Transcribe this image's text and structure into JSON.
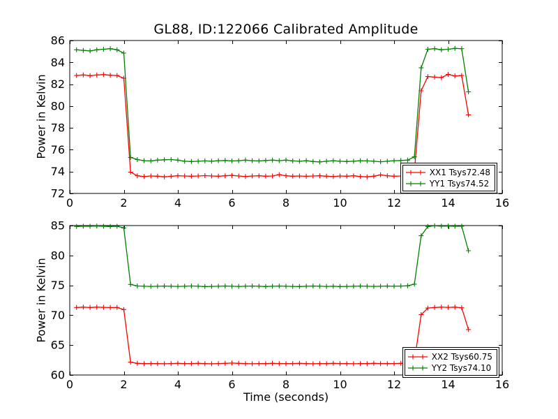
{
  "figure": {
    "background_color": "#ffffff",
    "axis_color": "#000000"
  },
  "chart_data": [
    {
      "type": "line",
      "title": "GL88, ID:122066 Calibrated Amplitude",
      "xlabel": "",
      "ylabel": "Power in Kelvin",
      "xlim": [
        0,
        16
      ],
      "ylim": [
        72,
        86
      ],
      "xticks": [
        0,
        2,
        4,
        6,
        8,
        10,
        12,
        14,
        16
      ],
      "yticks": [
        72,
        74,
        76,
        78,
        80,
        82,
        84,
        86
      ],
      "grid": false,
      "tick_direction": "in",
      "marker": "+",
      "legend_position": "lower-right",
      "x": [
        0.25,
        0.5,
        0.75,
        1.0,
        1.25,
        1.5,
        1.75,
        2.0,
        2.25,
        2.5,
        2.75,
        3.0,
        3.25,
        3.5,
        3.75,
        4.0,
        4.25,
        4.5,
        4.75,
        5.0,
        5.25,
        5.5,
        5.75,
        6.0,
        6.25,
        6.5,
        6.75,
        7.0,
        7.25,
        7.5,
        7.75,
        8.0,
        8.25,
        8.5,
        8.75,
        9.0,
        9.25,
        9.5,
        9.75,
        10.0,
        10.25,
        10.5,
        10.75,
        11.0,
        11.25,
        11.5,
        11.75,
        12.0,
        12.25,
        12.5,
        12.75,
        13.0,
        13.25,
        13.5,
        13.75,
        14.0,
        14.25,
        14.5,
        14.75
      ],
      "series": [
        {
          "name": "XX1 Tsys72.48",
          "color": "#ff0000",
          "values": [
            82.8,
            82.85,
            82.78,
            82.84,
            82.88,
            82.82,
            82.8,
            82.55,
            73.95,
            73.62,
            73.55,
            73.6,
            73.58,
            73.52,
            73.57,
            73.62,
            73.6,
            73.58,
            73.6,
            73.63,
            73.6,
            73.58,
            73.62,
            73.65,
            73.6,
            73.55,
            73.6,
            73.62,
            73.58,
            73.6,
            73.72,
            73.62,
            73.58,
            73.6,
            73.57,
            73.6,
            73.62,
            73.58,
            73.55,
            73.6,
            73.58,
            73.62,
            73.55,
            73.52,
            73.58,
            73.7,
            73.62,
            73.58,
            73.6,
            73.66,
            74.0,
            81.4,
            82.7,
            82.65,
            82.6,
            82.9,
            82.75,
            82.8,
            79.2
          ]
        },
        {
          "name": "YY1 Tsys74.52",
          "color": "#008000",
          "values": [
            85.15,
            85.1,
            85.05,
            85.15,
            85.2,
            85.25,
            85.15,
            84.85,
            75.3,
            75.1,
            75.0,
            74.98,
            75.05,
            75.08,
            75.1,
            75.05,
            74.95,
            74.92,
            74.95,
            74.98,
            74.95,
            75.0,
            75.02,
            74.98,
            75.0,
            75.05,
            75.0,
            74.98,
            75.02,
            75.05,
            75.0,
            75.05,
            74.98,
            74.95,
            75.0,
            74.92,
            74.88,
            74.95,
            75.0,
            74.95,
            74.92,
            74.95,
            75.0,
            74.98,
            74.95,
            74.9,
            74.95,
            75.0,
            75.02,
            75.05,
            75.35,
            83.5,
            85.2,
            85.25,
            85.15,
            85.2,
            85.28,
            85.25,
            81.3
          ]
        }
      ]
    },
    {
      "type": "line",
      "title": "",
      "xlabel": "Time (seconds)",
      "ylabel": "Power in Kelvin",
      "xlim": [
        0,
        16
      ],
      "ylim": [
        60,
        85
      ],
      "xticks": [
        0,
        2,
        4,
        6,
        8,
        10,
        12,
        14,
        16
      ],
      "yticks": [
        60,
        65,
        70,
        75,
        80,
        85
      ],
      "grid": false,
      "tick_direction": "in",
      "marker": "+",
      "legend_position": "lower-right",
      "x": [
        0.25,
        0.5,
        0.75,
        1.0,
        1.25,
        1.5,
        1.75,
        2.0,
        2.25,
        2.5,
        2.75,
        3.0,
        3.25,
        3.5,
        3.75,
        4.0,
        4.25,
        4.5,
        4.75,
        5.0,
        5.25,
        5.5,
        5.75,
        6.0,
        6.25,
        6.5,
        6.75,
        7.0,
        7.25,
        7.5,
        7.75,
        8.0,
        8.25,
        8.5,
        8.75,
        9.0,
        9.25,
        9.5,
        9.75,
        10.0,
        10.25,
        10.5,
        10.75,
        11.0,
        11.25,
        11.5,
        11.75,
        12.0,
        12.25,
        12.5,
        12.75,
        13.0,
        13.25,
        13.5,
        13.75,
        14.0,
        14.25,
        14.5,
        14.75
      ],
      "series": [
        {
          "name": "XX2 Tsys60.75",
          "color": "#ff0000",
          "values": [
            71.3,
            71.35,
            71.3,
            71.35,
            71.32,
            71.28,
            71.3,
            70.95,
            62.15,
            61.95,
            61.9,
            61.92,
            61.9,
            61.88,
            61.92,
            61.95,
            61.9,
            61.92,
            61.95,
            61.9,
            61.88,
            61.92,
            61.95,
            62.0,
            61.95,
            61.9,
            61.88,
            61.92,
            61.9,
            61.95,
            61.92,
            61.9,
            61.92,
            61.95,
            61.9,
            61.88,
            61.92,
            61.9,
            61.95,
            61.92,
            61.9,
            61.88,
            61.92,
            61.9,
            61.95,
            61.92,
            61.9,
            61.92,
            61.95,
            62.0,
            62.25,
            70.1,
            71.2,
            71.3,
            71.35,
            71.32,
            71.35,
            71.25,
            67.6
          ]
        },
        {
          "name": "YY2 Tsys74.10",
          "color": "#008000",
          "values": [
            84.85,
            84.9,
            84.88,
            84.92,
            84.88,
            84.85,
            84.88,
            84.6,
            75.15,
            74.9,
            74.85,
            74.82,
            74.85,
            74.88,
            74.85,
            74.82,
            74.85,
            74.9,
            74.85,
            74.8,
            74.82,
            74.85,
            74.88,
            74.85,
            74.82,
            74.85,
            74.88,
            74.85,
            74.8,
            74.85,
            74.88,
            74.85,
            74.82,
            74.8,
            74.85,
            74.88,
            74.85,
            74.82,
            74.85,
            74.8,
            74.82,
            74.85,
            74.88,
            74.85,
            74.82,
            74.85,
            74.88,
            74.85,
            74.88,
            74.92,
            75.2,
            83.3,
            84.85,
            84.95,
            84.9,
            84.92,
            84.88,
            84.9,
            80.8
          ]
        }
      ]
    }
  ]
}
